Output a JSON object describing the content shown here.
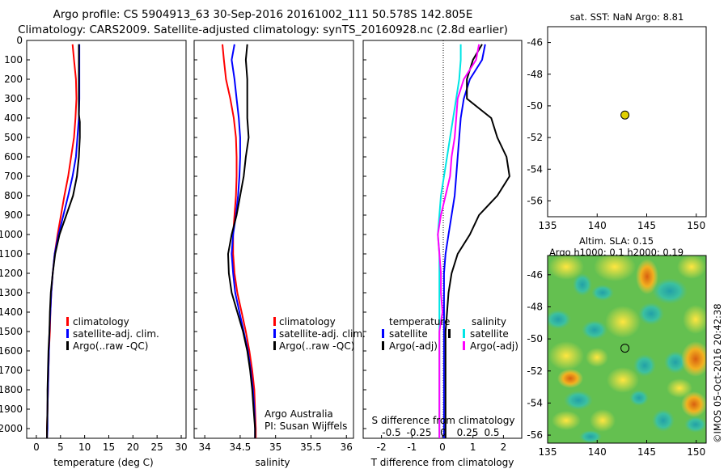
{
  "header": {
    "line1": "Argo profile: CS 5904913_63 30-Sep-2016 20161002_111 50.578S 142.805E",
    "line2": "Climatology: CARS2009. Satellite-adjusted climatology: synTS_20160928.nc (2.8d earlier)"
  },
  "colors": {
    "climatology": "#ff0000",
    "satellite": "#0000ff",
    "argo": "#000000",
    "sat_salinity": "#00e5e5",
    "argo_salinity": "#ff00ff",
    "marker": "#e0d000"
  },
  "depth_ticks": [
    "0",
    "100",
    "200",
    "300",
    "400",
    "500",
    "600",
    "700",
    "800",
    "900",
    "1000",
    "1100",
    "1200",
    "1300",
    "1400",
    "1500",
    "1600",
    "1700",
    "1800",
    "1900",
    "2000"
  ],
  "temp_panel": {
    "xlabel": "temperature (deg C)",
    "xticks": [
      "0",
      "5",
      "10",
      "15",
      "20",
      "25",
      "30"
    ],
    "legend": [
      "climatology",
      "satellite-adj. clim.",
      "Argo(..raw -QC)"
    ]
  },
  "sal_panel": {
    "xlabel": "salinity",
    "xticks": [
      "34",
      "34.5",
      "35",
      "35.5",
      "36"
    ],
    "legend": [
      "climatology",
      "satellite-adj. clim.",
      "Argo(..raw -QC)"
    ],
    "note1": "Argo Australia",
    "note2": "PI: Susan Wijffels"
  },
  "diff_panel": {
    "xlabel": "T difference from climatology",
    "xticks": [
      "-2",
      "-1",
      "0",
      "1",
      "2"
    ],
    "top_label": "S difference from climatology",
    "top_ticks": [
      "-0.5",
      "-0.25",
      "0",
      "0.25",
      "0.5"
    ],
    "legend_temp_title": "temperature",
    "legend_sal_title": "salinity",
    "legend_temp": [
      "satellite",
      "Argo(-adj)"
    ],
    "legend_sal": [
      "satellite",
      "Argo(-adj)"
    ]
  },
  "map_top": {
    "title": "sat. SST: NaN Argo: 8.81",
    "yticks": [
      "-46",
      "-48",
      "-50",
      "-52",
      "-54",
      "-56"
    ],
    "xticks": [
      "135",
      "140",
      "145",
      "150"
    ]
  },
  "map_bottom": {
    "title1": "Altim. SLA: 0.15",
    "title2": "Argo h1000: 0.1 h2000: 0.19",
    "yticks": [
      "-46",
      "-48",
      "-50",
      "-52",
      "-54",
      "-56"
    ],
    "xticks": [
      "135",
      "140",
      "145",
      "150"
    ],
    "side_label": "©IMOS 05-Oct-2016 20:42:38"
  },
  "chart_data": [
    {
      "type": "line",
      "xlabel": "temperature (deg C)",
      "ylabel": "",
      "xlim": [
        -2,
        31
      ],
      "ylim": [
        2050,
        0
      ],
      "series": [
        {
          "name": "climatology",
          "points": [
            [
              7.5,
              20
            ],
            [
              7.8,
              100
            ],
            [
              8.2,
              200
            ],
            [
              8.3,
              300
            ],
            [
              8.1,
              400
            ],
            [
              7.8,
              500
            ],
            [
              7.2,
              600
            ],
            [
              6.6,
              700
            ],
            [
              5.8,
              800
            ],
            [
              5.1,
              900
            ],
            [
              4.4,
              1000
            ],
            [
              3.8,
              1100
            ],
            [
              3.4,
              1200
            ],
            [
              3.1,
              1300
            ],
            [
              2.9,
              1400
            ],
            [
              2.8,
              1500
            ],
            [
              2.6,
              1600
            ],
            [
              2.5,
              1700
            ],
            [
              2.4,
              1800
            ],
            [
              2.3,
              1900
            ],
            [
              2.2,
              2000
            ],
            [
              2.2,
              2050
            ]
          ]
        },
        {
          "name": "satellite-adj. clim.",
          "points": [
            [
              8.9,
              20
            ],
            [
              8.9,
              100
            ],
            [
              8.9,
              200
            ],
            [
              8.9,
              300
            ],
            [
              8.8,
              400
            ],
            [
              8.5,
              500
            ],
            [
              8.2,
              600
            ],
            [
              7.5,
              700
            ],
            [
              6.6,
              800
            ],
            [
              5.6,
              900
            ],
            [
              4.6,
              1000
            ],
            [
              3.8,
              1100
            ],
            [
              3.4,
              1200
            ],
            [
              3.1,
              1300
            ],
            [
              2.9,
              1400
            ],
            [
              2.7,
              1500
            ],
            [
              2.6,
              1600
            ],
            [
              2.5,
              1700
            ],
            [
              2.4,
              1800
            ],
            [
              2.3,
              1900
            ],
            [
              2.3,
              2000
            ],
            [
              2.2,
              2050
            ]
          ]
        },
        {
          "name": "Argo(..raw -QC)",
          "points": [
            [
              8.8,
              20
            ],
            [
              8.8,
              100
            ],
            [
              8.8,
              200
            ],
            [
              8.8,
              300
            ],
            [
              8.8,
              380
            ],
            [
              9.0,
              420
            ],
            [
              9.0,
              500
            ],
            [
              8.8,
              600
            ],
            [
              8.4,
              700
            ],
            [
              7.6,
              800
            ],
            [
              6.2,
              900
            ],
            [
              4.8,
              1000
            ],
            [
              3.9,
              1100
            ],
            [
              3.4,
              1200
            ],
            [
              3.0,
              1300
            ],
            [
              2.8,
              1400
            ],
            [
              2.7,
              1500
            ],
            [
              2.5,
              1600
            ],
            [
              2.4,
              1700
            ],
            [
              2.3,
              1800
            ],
            [
              2.3,
              1900
            ],
            [
              2.2,
              2000
            ],
            [
              2.2,
              2050
            ]
          ]
        }
      ]
    },
    {
      "type": "line",
      "xlabel": "salinity",
      "ylabel": "",
      "xlim": [
        33.85,
        36.1
      ],
      "ylim": [
        2050,
        0
      ],
      "series": [
        {
          "name": "climatology",
          "points": [
            [
              34.25,
              20
            ],
            [
              34.27,
              100
            ],
            [
              34.3,
              200
            ],
            [
              34.36,
              300
            ],
            [
              34.41,
              400
            ],
            [
              34.44,
              500
            ],
            [
              34.45,
              600
            ],
            [
              34.45,
              700
            ],
            [
              34.44,
              800
            ],
            [
              34.42,
              900
            ],
            [
              34.4,
              1000
            ],
            [
              34.4,
              1100
            ],
            [
              34.42,
              1200
            ],
            [
              34.46,
              1300
            ],
            [
              34.52,
              1400
            ],
            [
              34.58,
              1500
            ],
            [
              34.63,
              1600
            ],
            [
              34.67,
              1700
            ],
            [
              34.7,
              1800
            ],
            [
              34.71,
              1900
            ],
            [
              34.72,
              2000
            ],
            [
              34.72,
              2050
            ]
          ]
        },
        {
          "name": "satellite-adj. clim.",
          "points": [
            [
              34.42,
              20
            ],
            [
              34.38,
              100
            ],
            [
              34.42,
              200
            ],
            [
              34.45,
              300
            ],
            [
              34.48,
              400
            ],
            [
              34.5,
              500
            ],
            [
              34.5,
              600
            ],
            [
              34.49,
              700
            ],
            [
              34.47,
              800
            ],
            [
              34.44,
              900
            ],
            [
              34.4,
              1000
            ],
            [
              34.38,
              1100
            ],
            [
              34.4,
              1200
            ],
            [
              34.43,
              1300
            ],
            [
              34.49,
              1400
            ],
            [
              34.55,
              1500
            ],
            [
              34.61,
              1600
            ],
            [
              34.65,
              1700
            ],
            [
              34.68,
              1800
            ],
            [
              34.7,
              1900
            ],
            [
              34.71,
              2000
            ],
            [
              34.71,
              2050
            ]
          ]
        },
        {
          "name": "Argo(..raw -QC)",
          "points": [
            [
              34.6,
              20
            ],
            [
              34.58,
              100
            ],
            [
              34.6,
              200
            ],
            [
              34.6,
              300
            ],
            [
              34.6,
              400
            ],
            [
              34.62,
              500
            ],
            [
              34.58,
              600
            ],
            [
              34.55,
              700
            ],
            [
              34.5,
              800
            ],
            [
              34.45,
              900
            ],
            [
              34.38,
              1000
            ],
            [
              34.33,
              1100
            ],
            [
              34.34,
              1200
            ],
            [
              34.38,
              1300
            ],
            [
              34.46,
              1400
            ],
            [
              34.54,
              1500
            ],
            [
              34.6,
              1600
            ],
            [
              34.64,
              1700
            ],
            [
              34.67,
              1800
            ],
            [
              34.69,
              1900
            ],
            [
              34.71,
              2000
            ],
            [
              34.71,
              2050
            ]
          ]
        }
      ]
    },
    {
      "type": "line",
      "xlabel": "T difference from climatology",
      "ylabel": "",
      "xlim": [
        -2.6,
        2.6
      ],
      "ylim": [
        2050,
        0
      ],
      "series": [
        {
          "name": "satellite",
          "points": [
            [
              1.4,
              20
            ],
            [
              1.3,
              100
            ],
            [
              0.9,
              200
            ],
            [
              0.7,
              300
            ],
            [
              0.6,
              400
            ],
            [
              0.55,
              500
            ],
            [
              0.5,
              600
            ],
            [
              0.45,
              700
            ],
            [
              0.4,
              800
            ],
            [
              0.3,
              900
            ],
            [
              0.2,
              1000
            ],
            [
              0.1,
              1100
            ],
            [
              0.05,
              1200
            ],
            [
              0.05,
              1300
            ],
            [
              0.05,
              1500
            ],
            [
              0.05,
              1700
            ],
            [
              0.05,
              1900
            ],
            [
              0.05,
              2050
            ]
          ]
        },
        {
          "name": "Argo(-adj)",
          "points": [
            [
              1.3,
              20
            ],
            [
              1.0,
              100
            ],
            [
              0.8,
              200
            ],
            [
              0.8,
              300
            ],
            [
              1.2,
              350
            ],
            [
              1.6,
              400
            ],
            [
              1.8,
              500
            ],
            [
              2.1,
              600
            ],
            [
              2.2,
              700
            ],
            [
              1.8,
              800
            ],
            [
              1.2,
              900
            ],
            [
              0.9,
              1000
            ],
            [
              0.5,
              1100
            ],
            [
              0.3,
              1200
            ],
            [
              0.2,
              1300
            ],
            [
              0.15,
              1400
            ],
            [
              0.1,
              1500
            ],
            [
              0.1,
              1700
            ],
            [
              0.1,
              1900
            ],
            [
              0.1,
              2050
            ]
          ]
        },
        {
          "name": "satellite",
          "points": [
            [
              0.6,
              20
            ],
            [
              0.6,
              100
            ],
            [
              0.55,
              200
            ],
            [
              0.45,
              300
            ],
            [
              0.35,
              400
            ],
            [
              0.25,
              500
            ],
            [
              0.15,
              600
            ],
            [
              0.05,
              700
            ],
            [
              -0.05,
              800
            ],
            [
              -0.1,
              900
            ],
            [
              -0.15,
              1000
            ],
            [
              -0.1,
              1100
            ],
            [
              -0.1,
              1300
            ],
            [
              -0.1,
              1500
            ],
            [
              -0.1,
              1700
            ],
            [
              -0.1,
              1900
            ],
            [
              -0.1,
              2050
            ]
          ]
        },
        {
          "name": "Argo(-adj)",
          "points": [
            [
              1.2,
              20
            ],
            [
              1.1,
              100
            ],
            [
              0.7,
              200
            ],
            [
              0.5,
              300
            ],
            [
              0.45,
              400
            ],
            [
              0.4,
              500
            ],
            [
              0.3,
              600
            ],
            [
              0.25,
              700
            ],
            [
              0.1,
              800
            ],
            [
              -0.05,
              900
            ],
            [
              -0.15,
              1000
            ],
            [
              -0.1,
              1100
            ],
            [
              -0.05,
              1200
            ],
            [
              -0.05,
              1300
            ],
            [
              0.0,
              1400
            ],
            [
              -0.1,
              1500
            ],
            [
              -0.1,
              1700
            ],
            [
              -0.1,
              1900
            ],
            [
              -0.1,
              2050
            ]
          ]
        }
      ]
    },
    {
      "type": "scatter",
      "title": "sat. SST: NaN Argo: 8.81",
      "xlim": [
        135,
        151
      ],
      "ylim": [
        -57,
        -45
      ],
      "points": [
        [
          142.805,
          -50.578
        ]
      ]
    },
    {
      "type": "heatmap",
      "title": "Altim. SLA: 0.15",
      "xlim": [
        135,
        151
      ],
      "ylim": [
        -56.5,
        -44.8
      ],
      "points": [
        [
          142.805,
          -50.578
        ]
      ]
    }
  ]
}
